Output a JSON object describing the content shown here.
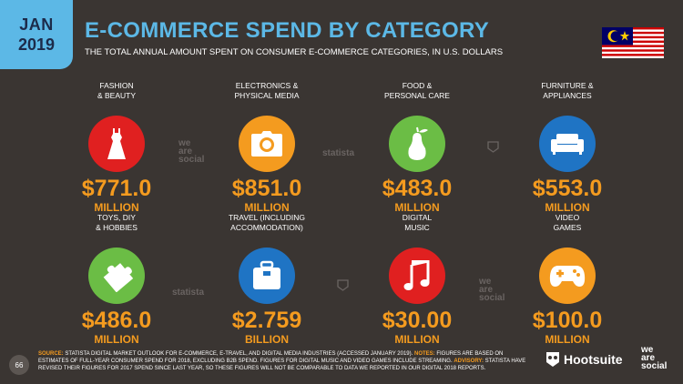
{
  "badge": {
    "month": "JAN",
    "year": "2019"
  },
  "title": "E-COMMERCE SPEND BY CATEGORY",
  "subtitle": "THE TOTAL ANNUAL AMOUNT SPENT ON CONSUMER E-COMMERCE CATEGORIES, IN U.S. DOLLARS",
  "categories": [
    {
      "label1": "FASHION",
      "label2": "& BEAUTY",
      "value": "$771.0",
      "unit": "MILLION",
      "color": "#e02020",
      "icon": "dress-icon"
    },
    {
      "label1": "ELECTRONICS &",
      "label2": "PHYSICAL MEDIA",
      "value": "$851.0",
      "unit": "MILLION",
      "color": "#f49b1f",
      "icon": "camera-icon"
    },
    {
      "label1": "FOOD &",
      "label2": "PERSONAL CARE",
      "value": "$483.0",
      "unit": "MILLION",
      "color": "#6bbd45",
      "icon": "pear-icon"
    },
    {
      "label1": "FURNITURE &",
      "label2": "APPLIANCES",
      "value": "$553.0",
      "unit": "MILLION",
      "color": "#1f74c4",
      "icon": "sofa-icon"
    },
    {
      "label1": "TOYS, DIY",
      "label2": "& HOBBIES",
      "value": "$486.0",
      "unit": "MILLION",
      "color": "#6bbd45",
      "icon": "puzzle-icon"
    },
    {
      "label1": "TRAVEL (INCLUDING",
      "label2": "ACCOMMODATION)",
      "value": "$2.759",
      "unit": "BILLION",
      "color": "#1f74c4",
      "icon": "luggage-icon"
    },
    {
      "label1": "DIGITAL",
      "label2": "MUSIC",
      "value": "$30.00",
      "unit": "MILLION",
      "color": "#e02020",
      "icon": "music-note-icon"
    },
    {
      "label1": "VIDEO",
      "label2": "GAMES",
      "value": "$100.0",
      "unit": "MILLION",
      "color": "#f49b1f",
      "icon": "gamepad-icon"
    }
  ],
  "watermarks": {
    "statista": "statista",
    "we": "we",
    "are": "are",
    "social": "social"
  },
  "footer": {
    "page": "66",
    "source_key": "SOURCE:",
    "source_text": "STATISTA DIGITAL MARKET OUTLOOK FOR E-COMMERCE, E-TRAVEL, AND DIGITAL MEDIA INDUSTRIES (ACCESSED JANUARY 2019).",
    "notes_key": "NOTES:",
    "notes_text": "FIGURES ARE BASED ON ESTIMATES OF FULL-YEAR CONSUMER SPEND FOR 2018, EXCLUDING B2B SPEND. FIGURES FOR DIGITAL MUSIC AND VIDEO GAMES INCLUDE STREAMING.",
    "advisory_key": "ADVISORY:",
    "advisory_text": "STATISTA HAVE REVISED THEIR FIGURES FOR 2017 SPEND SINCE LAST YEAR, SO THESE FIGURES WILL NOT BE COMPARABLE TO DATA WE REPORTED IN OUR DIGITAL 2018 REPORTS."
  },
  "brand": {
    "hootsuite": "Hootsuite",
    "was_we": "we",
    "was_are": "are",
    "was_social": "social"
  }
}
